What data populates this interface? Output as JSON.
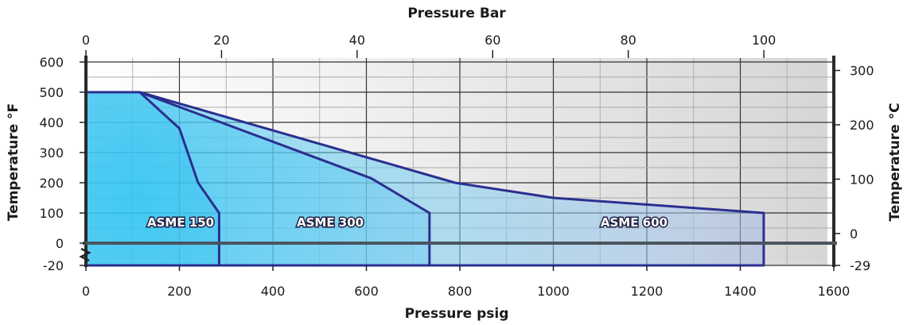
{
  "chart_data": {
    "type": "area",
    "title": "",
    "x_primary": {
      "label": "Pressure psig",
      "range": [
        0,
        1600
      ],
      "ticks": [
        0,
        200,
        400,
        600,
        800,
        1000,
        1200,
        1400,
        1600
      ]
    },
    "x_secondary": {
      "label": "Pressure Bar",
      "ticks": [
        0,
        20,
        40,
        60,
        80,
        100
      ]
    },
    "y_primary": {
      "label": "Temperature °F",
      "range": [
        -20,
        600
      ],
      "ticks": [
        600,
        500,
        400,
        300,
        200,
        100,
        0,
        -20
      ]
    },
    "y_secondary": {
      "label": "Temperature °C",
      "ticks": [
        300,
        200,
        100,
        0,
        -29
      ]
    },
    "grid": true,
    "axis_break": "broken y-axis between -20 °F and 0 °F",
    "series": [
      {
        "name": "ASME 600",
        "points": [
          [
            0,
            -20
          ],
          [
            0,
            500
          ],
          [
            115,
            500
          ],
          [
            790,
            200
          ],
          [
            1000,
            150
          ],
          [
            1450,
            100
          ],
          [
            1450,
            -20
          ]
        ]
      },
      {
        "name": "ASME 300",
        "points": [
          [
            0,
            -20
          ],
          [
            0,
            500
          ],
          [
            115,
            500
          ],
          [
            610,
            215
          ],
          [
            735,
            100
          ],
          [
            735,
            -20
          ]
        ]
      },
      {
        "name": "ASME 150",
        "points": [
          [
            0,
            -20
          ],
          [
            0,
            500
          ],
          [
            115,
            500
          ],
          [
            200,
            380
          ],
          [
            240,
            200
          ],
          [
            285,
            100
          ],
          [
            285,
            -20
          ]
        ]
      }
    ],
    "colors": {
      "region_inner": "#2ec4f2",
      "region_outer": "#8fa3d6",
      "outline": "#2b2f8f",
      "grid": "#333333",
      "axis": "#2a2a2a"
    }
  }
}
